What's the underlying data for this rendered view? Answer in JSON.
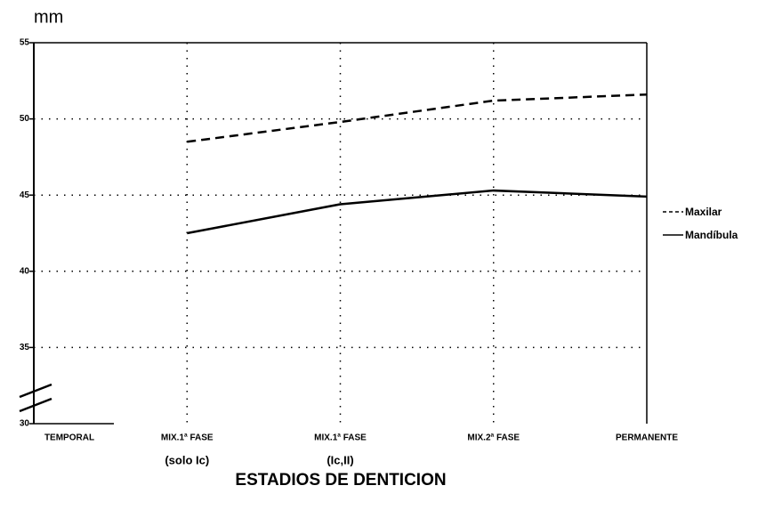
{
  "chart_data": {
    "type": "line",
    "y_label": "mm",
    "x_label": "ESTADIOS DE DENTICION",
    "categories": [
      [
        "TEMPORAL"
      ],
      [
        "MIX.1ª FASE",
        "(solo Ic)"
      ],
      [
        "MIX.1ª FASE",
        "(Ic,II)"
      ],
      [
        "MIX.2ª FASE"
      ],
      [
        "PERMANENTE"
      ]
    ],
    "series": [
      {
        "name": "Maxilar",
        "color": "#000000",
        "dash": true,
        "values": [
          null,
          48.5,
          49.8,
          51.2,
          51.6
        ]
      },
      {
        "name": "Mandíbula",
        "color": "#000000",
        "dash": false,
        "values": [
          null,
          42.5,
          44.4,
          45.3,
          44.9
        ]
      }
    ],
    "ylim": [
      30,
      55
    ],
    "yticks": [
      30,
      35,
      40,
      45,
      50,
      55
    ],
    "grid": true,
    "legend": "right"
  }
}
